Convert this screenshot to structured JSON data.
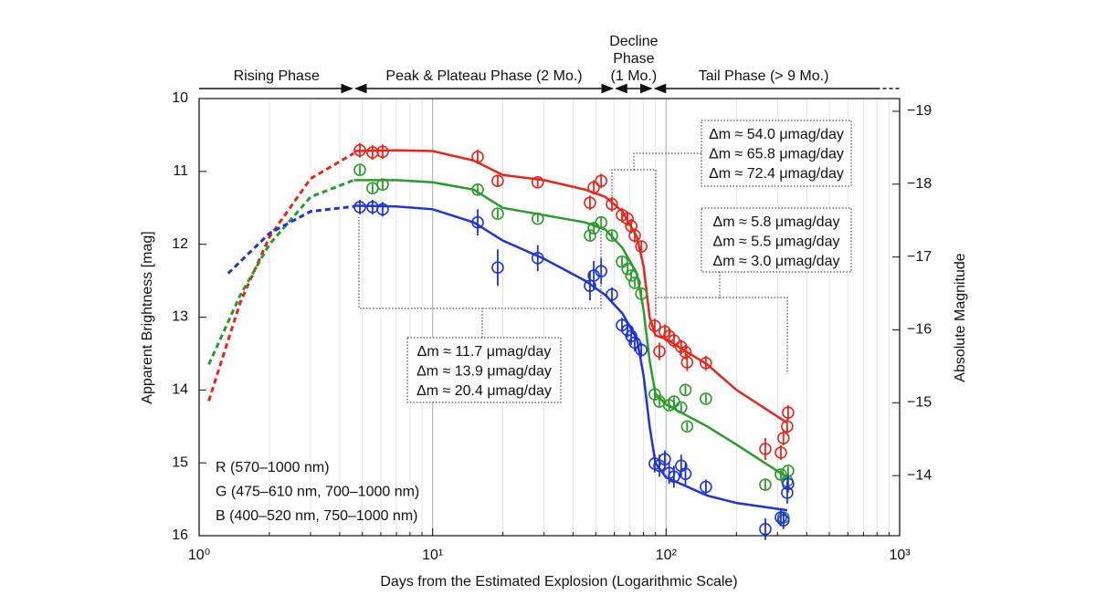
{
  "chart_data": {
    "type": "scatter",
    "x_label": "Days from the Estimated Explosion (Logarithmic Scale)",
    "y_label": "Apparent Brightness [mag]",
    "y2_label": "Absolute Magnitude",
    "xlog": true,
    "xlim": [
      1,
      1000
    ],
    "xticks": [
      {
        "value": 1,
        "label": "10⁰"
      },
      {
        "value": 10,
        "label": "10¹"
      },
      {
        "value": 100,
        "label": "10²"
      },
      {
        "value": 1000,
        "label": "10³"
      }
    ],
    "xminorticks": [
      2,
      3,
      4,
      5,
      6,
      7,
      8,
      9,
      20,
      30,
      40,
      50,
      60,
      70,
      80,
      90,
      200,
      300,
      400,
      500,
      600,
      700,
      800,
      900
    ],
    "ylim": [
      10,
      16
    ],
    "y_inverted": true,
    "yticks": [
      10,
      11,
      12,
      13,
      14,
      15,
      16
    ],
    "y2lim": [
      -19.175,
      -13.175
    ],
    "y2ticks": [
      {
        "value": -19,
        "label": "−19"
      },
      {
        "value": -18,
        "label": "−18"
      },
      {
        "value": -17,
        "label": "−17"
      },
      {
        "value": -16,
        "label": "−16"
      },
      {
        "value": -15,
        "label": "−15"
      },
      {
        "value": -14,
        "label": "−14"
      }
    ],
    "grid": true,
    "legend": "lower left",
    "phases": [
      {
        "label": [
          "Rising Phase"
        ],
        "start": 1,
        "end": 4.6
      },
      {
        "label": [
          "Peak & Plateau Phase (2 Mo.)"
        ],
        "start": 4.6,
        "end": 60
      },
      {
        "label": [
          "Decline",
          "Phase",
          "(1 Mo.)"
        ],
        "start": 60,
        "end": 88
      },
      {
        "label": [
          "Tail Phase (> 9 Mo.)"
        ],
        "start": 88,
        "end": 1000,
        "dashed_from": 795
      }
    ],
    "series": [
      {
        "name": "R (570–1000 nm)",
        "color": "#e8251c",
        "x": [
          4.88,
          5.53,
          6.11,
          15.6,
          19.0,
          28.2,
          47.2,
          49,
          52.7,
          58.6,
          64.7,
          68.4,
          70.9,
          73.4,
          78.3,
          89.4,
          93.6,
          98.7,
          103,
          108,
          116,
          121,
          123,
          148,
          266,
          310,
          318,
          330,
          333
        ],
        "values": [
          10.71,
          10.74,
          10.73,
          10.8,
          11.13,
          11.15,
          11.43,
          11.22,
          11.13,
          11.45,
          11.6,
          11.65,
          11.75,
          11.88,
          12.03,
          13.12,
          13.47,
          13.2,
          13.26,
          13.32,
          13.41,
          13.48,
          13.62,
          13.63,
          14.81,
          14.86,
          14.66,
          14.5,
          14.31
        ],
        "errors": [
          0.1,
          0.1,
          0.1,
          0.1,
          0.08,
          0.06,
          0.1,
          0.1,
          0.1,
          0.1,
          0.1,
          0.1,
          0.1,
          0.1,
          0.08,
          0.1,
          0.12,
          0.1,
          0.1,
          0.1,
          0.1,
          0.1,
          0.12,
          0.1,
          0.15,
          0.1,
          0.1,
          0.1,
          0.1
        ],
        "rise_x": [
          1.1,
          1.5,
          2,
          3,
          4.6
        ],
        "rise_y": [
          14.15,
          12.8,
          11.9,
          11.1,
          10.75
        ],
        "fit_x": [
          4.6,
          7,
          10,
          15,
          20,
          30,
          45,
          55,
          65,
          75,
          80,
          85,
          90,
          100,
          150,
          200,
          330
        ],
        "fit_y": [
          10.72,
          10.71,
          10.72,
          10.85,
          11.05,
          11.12,
          11.25,
          11.35,
          11.55,
          11.9,
          12.3,
          13.0,
          13.25,
          13.3,
          13.65,
          14.0,
          14.45
        ]
      },
      {
        "name": "G (475–610 nm, 700–1000 nm)",
        "color": "#2a9a2a",
        "x": [
          4.88,
          5.53,
          6.11,
          15.6,
          19.0,
          28.2,
          47.2,
          49,
          52.7,
          58.6,
          64.7,
          68.4,
          70.9,
          73.4,
          78.3,
          89.4,
          93.6,
          103,
          108,
          116,
          121,
          123,
          148,
          266,
          310,
          318,
          330,
          333
        ],
        "values": [
          10.98,
          11.23,
          11.18,
          11.25,
          11.58,
          11.65,
          11.88,
          11.78,
          11.7,
          11.88,
          12.24,
          12.34,
          12.43,
          12.53,
          12.68,
          14.06,
          14.16,
          14.21,
          14.16,
          14.24,
          14.0,
          14.5,
          14.12,
          15.3,
          15.16,
          15.75,
          15.25,
          15.11
        ],
        "errors": [
          0.06,
          0.06,
          0.06,
          0.06,
          0.06,
          0.05,
          0.08,
          0.08,
          0.08,
          0.06,
          0.06,
          0.06,
          0.06,
          0.06,
          0.06,
          0.06,
          0.06,
          0.06,
          0.06,
          0.06,
          0.06,
          0.06,
          0.06,
          0.08,
          0.06,
          0.06,
          0.06,
          0.06
        ],
        "rise_x": [
          1.1,
          1.5,
          2,
          3,
          4.6
        ],
        "rise_y": [
          13.65,
          12.7,
          12.0,
          11.35,
          11.12
        ],
        "fit_x": [
          4.6,
          7,
          10,
          15,
          20,
          30,
          45,
          55,
          65,
          75,
          80,
          85,
          90,
          100,
          150,
          200,
          330
        ],
        "fit_y": [
          11.12,
          11.12,
          11.15,
          11.25,
          11.5,
          11.6,
          11.7,
          11.8,
          12.05,
          12.4,
          12.9,
          13.6,
          14.05,
          14.2,
          14.5,
          14.75,
          15.2
        ]
      },
      {
        "name": "B (400–520 nm, 750–1000 nm)",
        "color": "#1f33d6",
        "x": [
          4.88,
          5.53,
          6.11,
          15.6,
          19.0,
          28.2,
          47.2,
          49,
          52.7,
          58.6,
          64.7,
          68.4,
          70.9,
          73.4,
          78.3,
          89.4,
          93.6,
          98.7,
          103,
          108,
          116,
          121,
          148,
          266,
          310,
          318,
          330,
          333
        ],
        "values": [
          11.49,
          11.49,
          11.52,
          11.7,
          12.32,
          12.19,
          12.57,
          12.43,
          12.37,
          12.69,
          13.11,
          13.18,
          13.26,
          13.35,
          13.45,
          15.01,
          15.04,
          14.95,
          15.14,
          15.19,
          15.04,
          15.15,
          15.33,
          15.91,
          15.75,
          15.79,
          15.41,
          15.29
        ],
        "errors": [
          0.1,
          0.1,
          0.1,
          0.18,
          0.25,
          0.18,
          0.2,
          0.2,
          0.18,
          0.1,
          0.1,
          0.1,
          0.12,
          0.12,
          0.1,
          0.12,
          0.15,
          0.12,
          0.15,
          0.15,
          0.15,
          0.15,
          0.1,
          0.15,
          0.12,
          0.12,
          0.15,
          0.12
        ],
        "rise_x": [
          1.33,
          2,
          3,
          4.6
        ],
        "rise_y": [
          12.4,
          11.85,
          11.55,
          11.48
        ],
        "fit_x": [
          4.6,
          7,
          10,
          15,
          20,
          30,
          45,
          55,
          65,
          75,
          80,
          85,
          90,
          100,
          150,
          200,
          330
        ],
        "fit_y": [
          11.47,
          11.48,
          11.52,
          11.7,
          11.95,
          12.2,
          12.5,
          12.7,
          12.95,
          13.3,
          13.8,
          14.5,
          15.0,
          15.2,
          15.45,
          15.55,
          15.65
        ]
      }
    ],
    "annotations": [
      {
        "lines": [
          {
            "text": "Δm ≈ 54.0 μmag/day",
            "color": "#e8251c"
          },
          {
            "text": "Δm ≈ 65.8 μmag/day",
            "color": "#2a9a2a"
          },
          {
            "text": "Δm ≈ 72.4 μmag/day",
            "color": "#1f33d6"
          }
        ]
      },
      {
        "lines": [
          {
            "text": "Δm ≈ 5.8 μmag/day",
            "color": "#e8251c"
          },
          {
            "text": "Δm ≈ 5.5 μmag/day",
            "color": "#2a9a2a"
          },
          {
            "text": "Δm ≈ 3.0 μmag/day",
            "color": "#1f33d6"
          }
        ]
      },
      {
        "lines": [
          {
            "text": "Δm ≈ 11.7 μmag/day",
            "color": "#e8251c"
          },
          {
            "text": "Δm ≈ 13.9 μmag/day",
            "color": "#2a9a2a"
          },
          {
            "text": "Δm ≈ 20.4 μmag/day",
            "color": "#1f33d6"
          }
        ]
      }
    ]
  }
}
